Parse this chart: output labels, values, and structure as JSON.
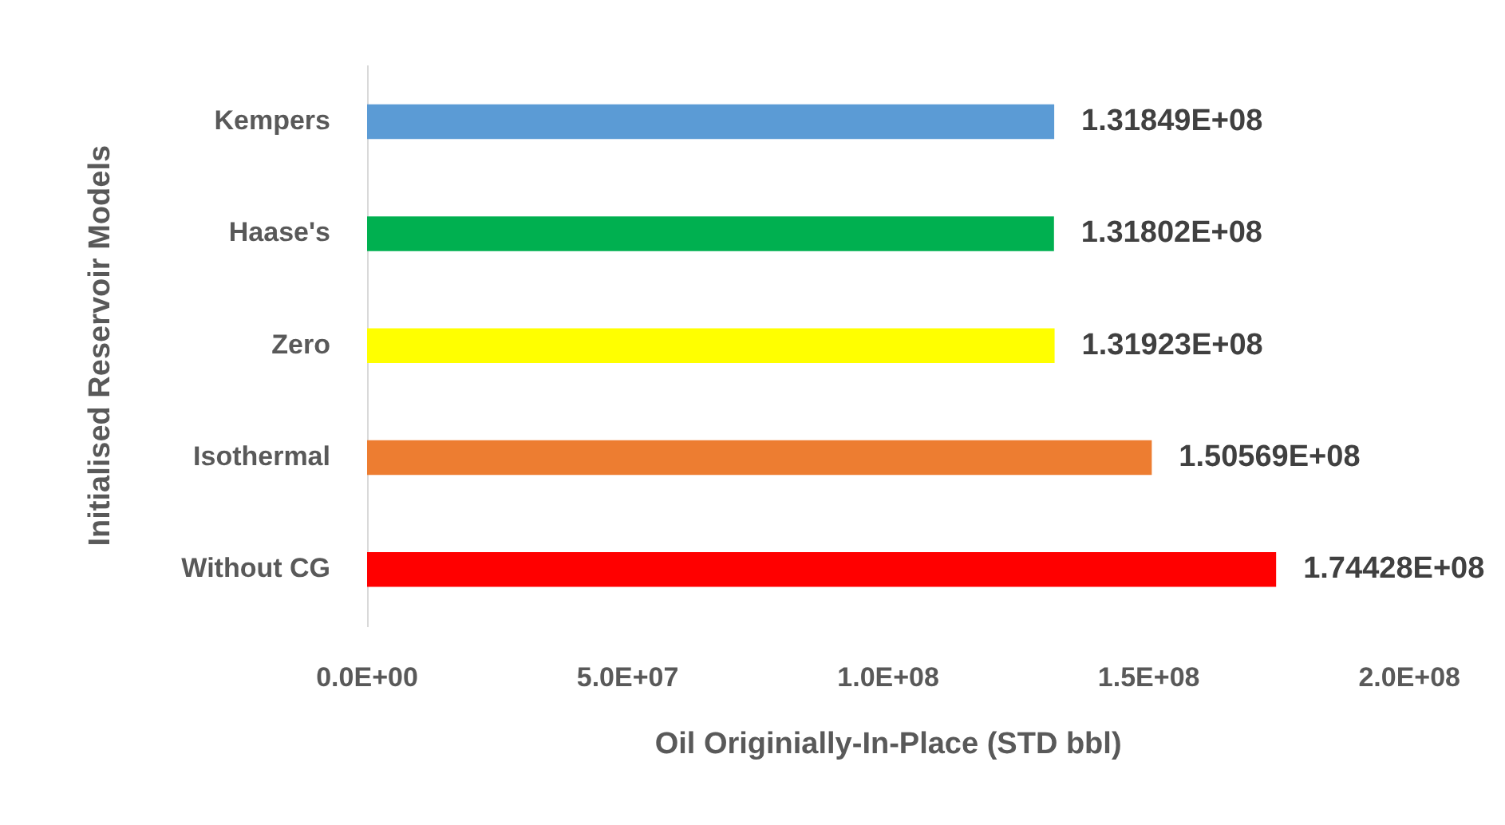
{
  "chart_data": {
    "type": "bar",
    "orientation": "horizontal",
    "categories": [
      "Kempers",
      "Haase's",
      "Zero",
      "Isothermal",
      "Without CG"
    ],
    "values": [
      131849000,
      131802000,
      131923000,
      150569000,
      174428000
    ],
    "colors": [
      "#5b9bd5",
      "#00b050",
      "#ffff00",
      "#ed7d31",
      "#ff0000"
    ],
    "value_labels": [
      "1.31849E+08",
      "1.31802E+08",
      "1.31923E+08",
      "1.50569E+08",
      "1.74428E+08"
    ],
    "xlim": [
      0,
      200000000
    ],
    "xticks": [
      {
        "value": 0,
        "label": "0.0E+00"
      },
      {
        "value": 50000000,
        "label": "5.0E+07"
      },
      {
        "value": 100000000,
        "label": "1.0E+08"
      },
      {
        "value": 150000000,
        "label": "1.5E+08"
      },
      {
        "value": 200000000,
        "label": "2.0E+08"
      }
    ],
    "xlabel": "Oil Originially-In-Place (STD bbl)",
    "ylabel": "Initialised Reservoir Models",
    "grid": false,
    "legend": false
  }
}
